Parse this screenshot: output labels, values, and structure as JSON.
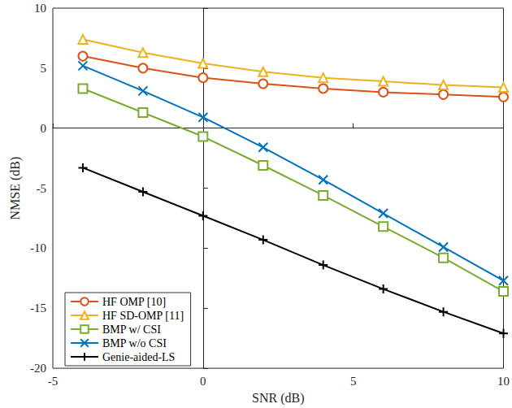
{
  "chart_data": {
    "type": "line",
    "x_label": "SNR (dB)",
    "y_label": "NMSE (dB)",
    "x": [
      -4,
      -2,
      0,
      2,
      4,
      6,
      8,
      10
    ],
    "xlim": [
      -5,
      10
    ],
    "xticks": [
      -5,
      0,
      5,
      10
    ],
    "ylim": [
      -20,
      10
    ],
    "yticks": [
      -20,
      -15,
      -10,
      -5,
      0,
      5,
      10
    ],
    "grid": false,
    "legend": "lower left",
    "series": [
      {
        "name": "HF OMP [10]",
        "color": "#d95319",
        "marker": "circle",
        "values": [
          6.0,
          5.0,
          4.2,
          3.7,
          3.3,
          3.0,
          2.8,
          2.6
        ]
      },
      {
        "name": "HF SD-OMP [11]",
        "color": "#edb120",
        "marker": "triangle",
        "values": [
          7.4,
          6.3,
          5.4,
          4.7,
          4.2,
          3.9,
          3.6,
          3.4
        ]
      },
      {
        "name": "BMP w/ CSI",
        "color": "#77ac30",
        "marker": "square",
        "values": [
          3.3,
          1.3,
          -0.7,
          -3.1,
          -5.6,
          -8.2,
          -10.8,
          -13.6
        ]
      },
      {
        "name": "BMP w/o CSI",
        "color": "#0072bd",
        "marker": "x",
        "values": [
          5.2,
          3.1,
          0.9,
          -1.6,
          -4.3,
          -7.1,
          -9.9,
          -12.7
        ]
      },
      {
        "name": "Genie-aided-LS",
        "color": "#000000",
        "marker": "plus",
        "values": [
          -3.3,
          -5.3,
          -7.3,
          -9.3,
          -11.4,
          -13.4,
          -15.3,
          -17.1
        ]
      }
    ]
  }
}
